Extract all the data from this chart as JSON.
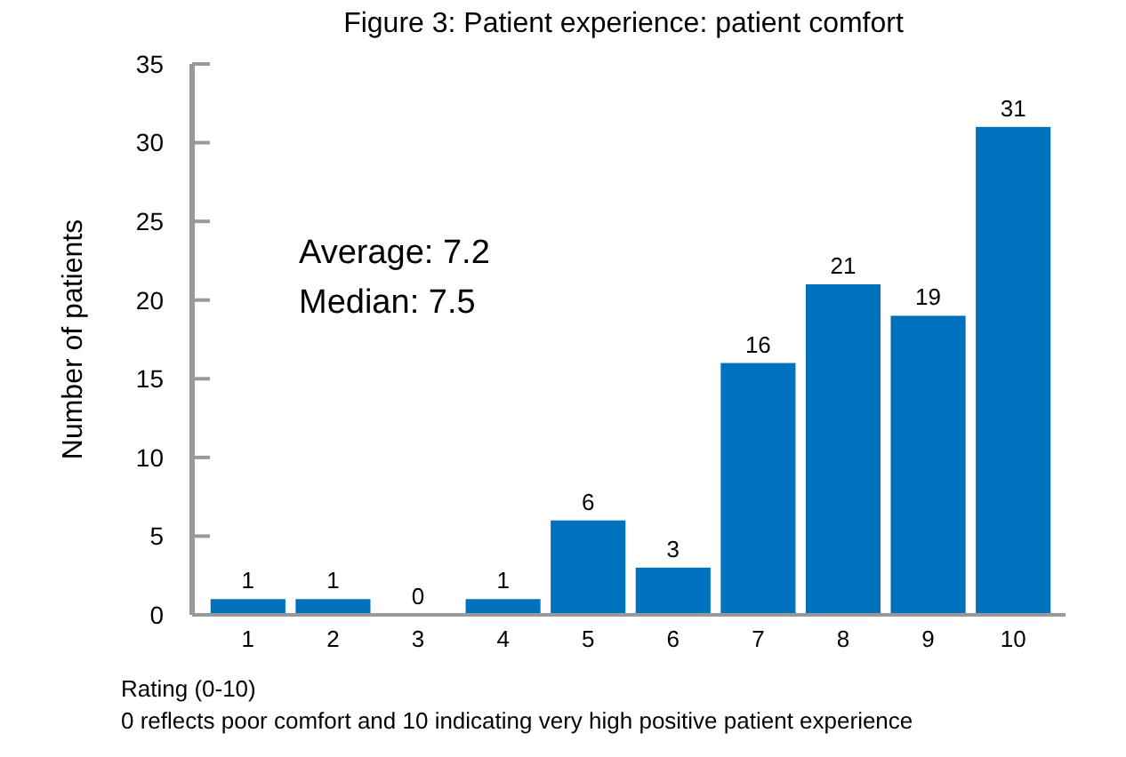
{
  "chart_data": {
    "type": "bar",
    "title": "Figure 3: Patient experience: patient comfort",
    "ylabel": "Number of patients",
    "xlabel": "Rating (0-10)",
    "categories": [
      "1",
      "2",
      "3",
      "4",
      "5",
      "6",
      "7",
      "8",
      "9",
      "10"
    ],
    "values": [
      1,
      1,
      0,
      1,
      6,
      3,
      16,
      21,
      19,
      31
    ],
    "color": "#0071bc",
    "ylim": [
      0,
      35
    ],
    "yticks": [
      0,
      5,
      10,
      15,
      20,
      25,
      30,
      35
    ],
    "grid": false,
    "data_labels": true,
    "annotations": [
      "Average: 7.2",
      "Median: 7.5",
      "0 reflects poor comfort and 10 indicating very high positive patient experience"
    ]
  }
}
